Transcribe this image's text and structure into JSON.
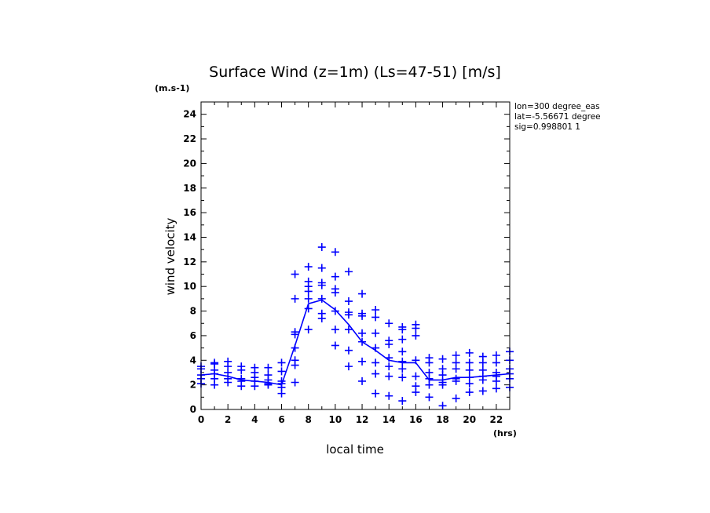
{
  "chart_data": {
    "type": "scatter",
    "title": "Surface Wind (z=1m) (Ls=47-51) [m/s]",
    "xlabel": "local time",
    "ylabel": "wind velocity",
    "x_unit": "(hrs)",
    "y_unit": "(m.s-1)",
    "xlim": [
      0,
      23
    ],
    "ylim": [
      0,
      25
    ],
    "xticks": [
      0,
      2,
      4,
      6,
      8,
      10,
      12,
      14,
      16,
      18,
      20,
      22
    ],
    "yticks": [
      0,
      2,
      4,
      6,
      8,
      10,
      12,
      14,
      16,
      18,
      20,
      22,
      24
    ],
    "grid": false,
    "info_lines": [
      "lon=300 degree_eas",
      "lat=-5.56671 degree",
      "sig=0.998801 1"
    ],
    "series": [
      {
        "kind": "line",
        "color": "#0000ff",
        "x": [
          0,
          1,
          2,
          3,
          4,
          5,
          6,
          7,
          8,
          9,
          10,
          11,
          12,
          13,
          14,
          15,
          16,
          17,
          18,
          19,
          20,
          21,
          22,
          23
        ],
        "y": [
          2.8,
          2.9,
          2.7,
          2.4,
          2.3,
          2.2,
          2.0,
          5.2,
          8.6,
          8.9,
          8.1,
          6.9,
          5.5,
          4.8,
          4.0,
          3.8,
          3.8,
          2.4,
          2.4,
          2.6,
          2.6,
          2.7,
          2.8,
          2.9
        ]
      },
      {
        "kind": "scatter",
        "marker": "+",
        "color": "#0000ff",
        "points": [
          [
            0,
            3.5
          ],
          [
            0,
            3.3
          ],
          [
            0,
            2.8
          ],
          [
            0,
            2.5
          ],
          [
            0,
            2.1
          ],
          [
            1,
            3.8
          ],
          [
            1,
            3.7
          ],
          [
            1,
            3.2
          ],
          [
            1,
            2.9
          ],
          [
            1,
            2.5
          ],
          [
            1,
            2.0
          ],
          [
            2,
            3.9
          ],
          [
            2,
            3.5
          ],
          [
            2,
            3.0
          ],
          [
            2,
            2.5
          ],
          [
            2,
            2.2
          ],
          [
            3,
            3.5
          ],
          [
            3,
            3.2
          ],
          [
            3,
            2.5
          ],
          [
            3,
            2.3
          ],
          [
            3,
            1.9
          ],
          [
            4,
            3.4
          ],
          [
            4,
            3.0
          ],
          [
            4,
            2.6
          ],
          [
            4,
            2.3
          ],
          [
            4,
            1.9
          ],
          [
            5,
            3.4
          ],
          [
            5,
            2.8
          ],
          [
            5,
            2.4
          ],
          [
            5,
            2.1
          ],
          [
            5,
            2.0
          ],
          [
            6,
            3.8
          ],
          [
            6,
            3.1
          ],
          [
            6,
            2.3
          ],
          [
            6,
            2.1
          ],
          [
            6,
            1.8
          ],
          [
            6,
            1.3
          ],
          [
            7,
            11.0
          ],
          [
            7,
            9.0
          ],
          [
            7,
            6.3
          ],
          [
            7,
            6.1
          ],
          [
            7,
            5.0
          ],
          [
            7,
            4.0
          ],
          [
            7,
            3.6
          ],
          [
            7,
            2.2
          ],
          [
            8,
            11.6
          ],
          [
            8,
            10.4
          ],
          [
            8,
            10.0
          ],
          [
            8,
            9.6
          ],
          [
            8,
            9.0
          ],
          [
            8,
            8.2
          ],
          [
            8,
            6.5
          ],
          [
            9,
            13.2
          ],
          [
            9,
            11.5
          ],
          [
            9,
            10.3
          ],
          [
            9,
            10.1
          ],
          [
            9,
            9.0
          ],
          [
            9,
            7.8
          ],
          [
            9,
            7.4
          ],
          [
            10,
            12.8
          ],
          [
            10,
            10.8
          ],
          [
            10,
            9.8
          ],
          [
            10,
            9.5
          ],
          [
            10,
            8.0
          ],
          [
            10,
            6.5
          ],
          [
            10,
            5.2
          ],
          [
            11,
            11.2
          ],
          [
            11,
            8.8
          ],
          [
            11,
            7.9
          ],
          [
            11,
            7.7
          ],
          [
            11,
            6.5
          ],
          [
            11,
            4.8
          ],
          [
            11,
            3.5
          ],
          [
            12,
            9.4
          ],
          [
            12,
            7.8
          ],
          [
            12,
            7.6
          ],
          [
            12,
            6.2
          ],
          [
            12,
            5.5
          ],
          [
            12,
            3.9
          ],
          [
            12,
            2.3
          ],
          [
            13,
            8.1
          ],
          [
            13,
            7.5
          ],
          [
            13,
            6.2
          ],
          [
            13,
            5.0
          ],
          [
            13,
            3.8
          ],
          [
            13,
            2.9
          ],
          [
            13,
            1.3
          ],
          [
            14,
            7.0
          ],
          [
            14,
            5.6
          ],
          [
            14,
            5.3
          ],
          [
            14,
            4.2
          ],
          [
            14,
            3.5
          ],
          [
            14,
            2.7
          ],
          [
            14,
            1.1
          ],
          [
            15,
            6.7
          ],
          [
            15,
            6.5
          ],
          [
            15,
            5.7
          ],
          [
            15,
            4.7
          ],
          [
            15,
            3.9
          ],
          [
            15,
            3.3
          ],
          [
            15,
            2.6
          ],
          [
            15,
            0.7
          ],
          [
            16,
            6.9
          ],
          [
            16,
            6.6
          ],
          [
            16,
            6.0
          ],
          [
            16,
            4.0
          ],
          [
            16,
            2.7
          ],
          [
            16,
            1.9
          ],
          [
            16,
            1.4
          ],
          [
            17,
            4.2
          ],
          [
            17,
            3.8
          ],
          [
            17,
            3.0
          ],
          [
            17,
            2.5
          ],
          [
            17,
            2.0
          ],
          [
            17,
            1.0
          ],
          [
            18,
            4.1
          ],
          [
            18,
            3.3
          ],
          [
            18,
            2.8
          ],
          [
            18,
            2.2
          ],
          [
            18,
            2.0
          ],
          [
            18,
            0.3
          ],
          [
            19,
            4.4
          ],
          [
            19,
            3.8
          ],
          [
            19,
            3.3
          ],
          [
            19,
            2.5
          ],
          [
            19,
            2.3
          ],
          [
            19,
            0.9
          ],
          [
            20,
            4.6
          ],
          [
            20,
            3.8
          ],
          [
            20,
            3.2
          ],
          [
            20,
            2.6
          ],
          [
            20,
            2.1
          ],
          [
            20,
            1.4
          ],
          [
            21,
            4.3
          ],
          [
            21,
            3.8
          ],
          [
            21,
            3.2
          ],
          [
            21,
            2.7
          ],
          [
            21,
            2.4
          ],
          [
            21,
            1.5
          ],
          [
            22,
            4.4
          ],
          [
            22,
            3.8
          ],
          [
            22,
            3.0
          ],
          [
            22,
            2.7
          ],
          [
            22,
            2.3
          ],
          [
            22,
            1.7
          ],
          [
            23,
            4.7
          ],
          [
            23,
            4.0
          ],
          [
            23,
            3.3
          ],
          [
            23,
            2.9
          ],
          [
            23,
            2.5
          ],
          [
            23,
            1.8
          ]
        ]
      }
    ]
  }
}
